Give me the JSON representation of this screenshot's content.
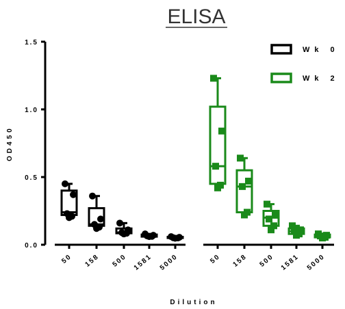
{
  "chart_data": {
    "type": "box",
    "title": "ELISA",
    "xlabel": "Dilution",
    "ylabel": "OD450",
    "ylim": [
      0,
      1.5
    ],
    "yticks": [
      "0.0",
      "0.5",
      "1.0",
      "1.5"
    ],
    "ytick_values": [
      0,
      0.5,
      1.0,
      1.5
    ],
    "grid": false,
    "legend_position": "top-right",
    "groups": [
      {
        "name": "Wk 0",
        "color": "#000000",
        "marker": "circle",
        "categories": [
          "50",
          "158",
          "500",
          "1581",
          "5000"
        ],
        "boxes": [
          {
            "min": 0.2,
            "q1": 0.22,
            "median": 0.24,
            "q3": 0.4,
            "max": 0.45,
            "points": [
              0.45,
              0.37,
              0.23,
              0.21,
              0.2
            ]
          },
          {
            "min": 0.12,
            "q1": 0.14,
            "median": 0.15,
            "q3": 0.27,
            "max": 0.36,
            "points": [
              0.36,
              0.19,
              0.15,
              0.13,
              0.12
            ]
          },
          {
            "min": 0.08,
            "q1": 0.085,
            "median": 0.09,
            "q3": 0.12,
            "max": 0.16,
            "points": [
              0.16,
              0.11,
              0.09,
              0.085,
              0.08
            ]
          },
          {
            "min": 0.06,
            "q1": 0.06,
            "median": 0.065,
            "q3": 0.075,
            "max": 0.08,
            "points": [
              0.08,
              0.07,
              0.065,
              0.062,
              0.06
            ]
          },
          {
            "min": 0.045,
            "q1": 0.05,
            "median": 0.052,
            "q3": 0.058,
            "max": 0.06,
            "points": [
              0.06,
              0.055,
              0.052,
              0.05,
              0.048
            ]
          }
        ]
      },
      {
        "name": "Wk 2",
        "color": "#1a8a1a",
        "marker": "square",
        "categories": [
          "50",
          "158",
          "500",
          "1581",
          "5000"
        ],
        "boxes": [
          {
            "min": 0.42,
            "q1": 0.45,
            "median": 0.58,
            "q3": 1.02,
            "max": 1.23,
            "points": [
              1.23,
              0.84,
              0.58,
              0.44,
              0.42
            ]
          },
          {
            "min": 0.22,
            "q1": 0.24,
            "median": 0.43,
            "q3": 0.55,
            "max": 0.64,
            "points": [
              0.64,
              0.47,
              0.43,
              0.24,
              0.22
            ]
          },
          {
            "min": 0.1,
            "q1": 0.14,
            "median": 0.2,
            "q3": 0.25,
            "max": 0.3,
            "points": [
              0.3,
              0.23,
              0.19,
              0.14,
              0.11
            ]
          },
          {
            "min": 0.06,
            "q1": 0.08,
            "median": 0.1,
            "q3": 0.12,
            "max": 0.14,
            "points": [
              0.14,
              0.11,
              0.1,
              0.08,
              0.07
            ]
          },
          {
            "min": 0.05,
            "q1": 0.055,
            "median": 0.065,
            "q3": 0.075,
            "max": 0.08,
            "points": [
              0.08,
              0.07,
              0.065,
              0.055,
              0.05
            ]
          }
        ]
      }
    ]
  }
}
